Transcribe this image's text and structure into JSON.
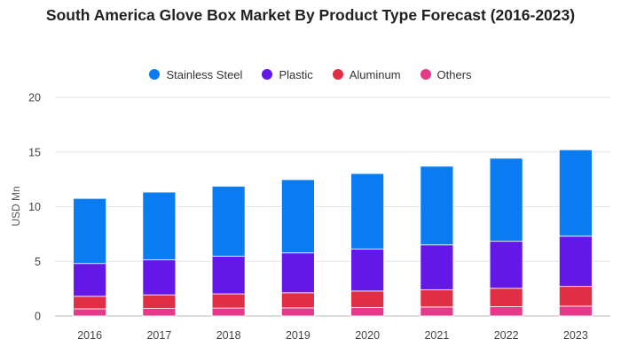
{
  "chart_data": {
    "type": "bar",
    "stacked": true,
    "title": "South America Glove Box Market By Product Type Forecast (2016-2023)",
    "xlabel": "",
    "ylabel": "USD Mn",
    "ylim": [
      0,
      20
    ],
    "yticks": [
      "0",
      "5",
      "10",
      "15",
      "20"
    ],
    "categories": [
      "2016",
      "2017",
      "2018",
      "2019",
      "2020",
      "2021",
      "2022",
      "2023"
    ],
    "grid": true,
    "legend_position": "top",
    "series": [
      {
        "name": "Others",
        "color": "#e5398a",
        "values": [
          0.65,
          0.68,
          0.72,
          0.74,
          0.78,
          0.82,
          0.85,
          0.9
        ]
      },
      {
        "name": "Aluminum",
        "color": "#e02f45",
        "values": [
          1.15,
          1.25,
          1.3,
          1.38,
          1.5,
          1.58,
          1.68,
          1.8
        ]
      },
      {
        "name": "Plastic",
        "color": "#6418e8",
        "values": [
          3.0,
          3.2,
          3.45,
          3.65,
          3.85,
          4.1,
          4.3,
          4.6
        ]
      },
      {
        "name": "Stainless Steel",
        "color": "#0a7cf2",
        "values": [
          5.95,
          6.2,
          6.4,
          6.7,
          6.9,
          7.2,
          7.6,
          7.9
        ]
      }
    ],
    "legend_order": [
      "Stainless Steel",
      "Plastic",
      "Aluminum",
      "Others"
    ]
  }
}
